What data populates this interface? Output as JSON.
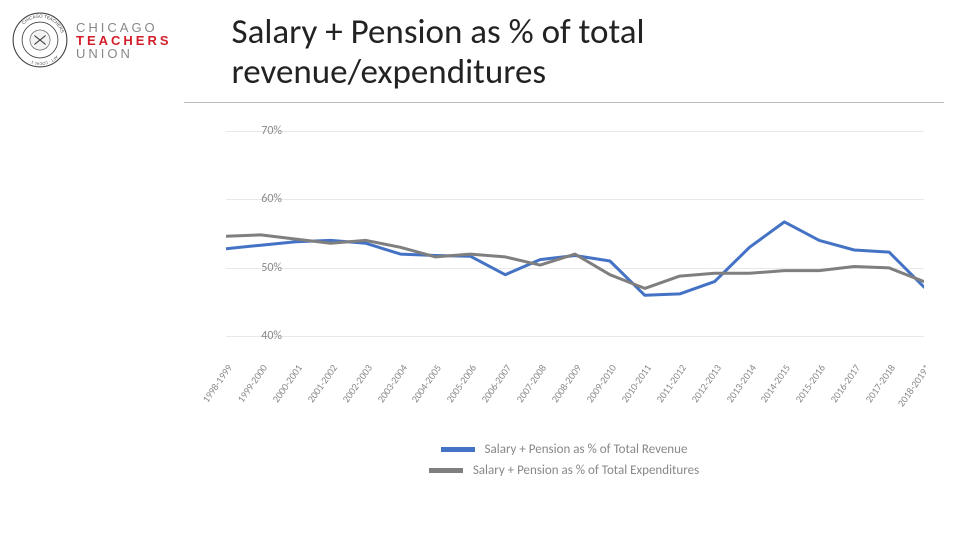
{
  "logo": {
    "line1": "CHICAGO",
    "line2": "TEACHERS",
    "line3": "UNION",
    "seal_outer": "#444444",
    "seal_inner": "#ffffff"
  },
  "title": "Salary + Pension as % of total revenue/expenditures",
  "chart": {
    "type": "line",
    "background_color": "#ffffff",
    "grid_color": "#e8e8e8",
    "axis_label_color": "#888888",
    "axis_label_fontsize": 12,
    "xaxis_label_fontsize": 10,
    "xaxis_rotation_deg": -55,
    "ylim": [
      37,
      72
    ],
    "yticks": [
      40,
      50,
      60,
      70
    ],
    "ytick_labels": [
      "40%",
      "50%",
      "60%",
      "70%"
    ],
    "categories": [
      "1998-1999",
      "1999-2000",
      "2000-2001",
      "2001-2002",
      "2002-2003",
      "2003-2004",
      "2004-2005",
      "2005-2006",
      "2006-2007",
      "2007-2008",
      "2008-2009",
      "2009-2010",
      "2010-2011",
      "2011-2012",
      "2012-2013",
      "2013-2014",
      "2014-2015",
      "2015-2016",
      "2016-2017",
      "2017-2018",
      "2018-2019*"
    ],
    "series": [
      {
        "name": "Salary + Pension as % of Total Revenue",
        "color": "#4472c4",
        "line_width": 3,
        "values": [
          52.8,
          53.3,
          53.8,
          54.0,
          53.6,
          52.0,
          51.8,
          51.7,
          49.0,
          51.2,
          51.8,
          51.0,
          46.0,
          46.2,
          48.0,
          53.0,
          56.7,
          54.0,
          52.6,
          52.3,
          47.2
        ]
      },
      {
        "name": "Salary + Pension as % of Total Expenditures",
        "color": "#7f7f7f",
        "line_width": 3,
        "values": [
          54.6,
          54.8,
          54.2,
          53.6,
          54.0,
          53.0,
          51.6,
          52.0,
          51.6,
          50.4,
          52.0,
          49.0,
          47.0,
          48.8,
          49.2,
          49.2,
          49.6,
          49.6,
          50.2,
          50.0,
          48.0
        ]
      }
    ],
    "legend": {
      "position": "bottom-center",
      "fontsize": 13,
      "text_color": "#888888"
    }
  }
}
